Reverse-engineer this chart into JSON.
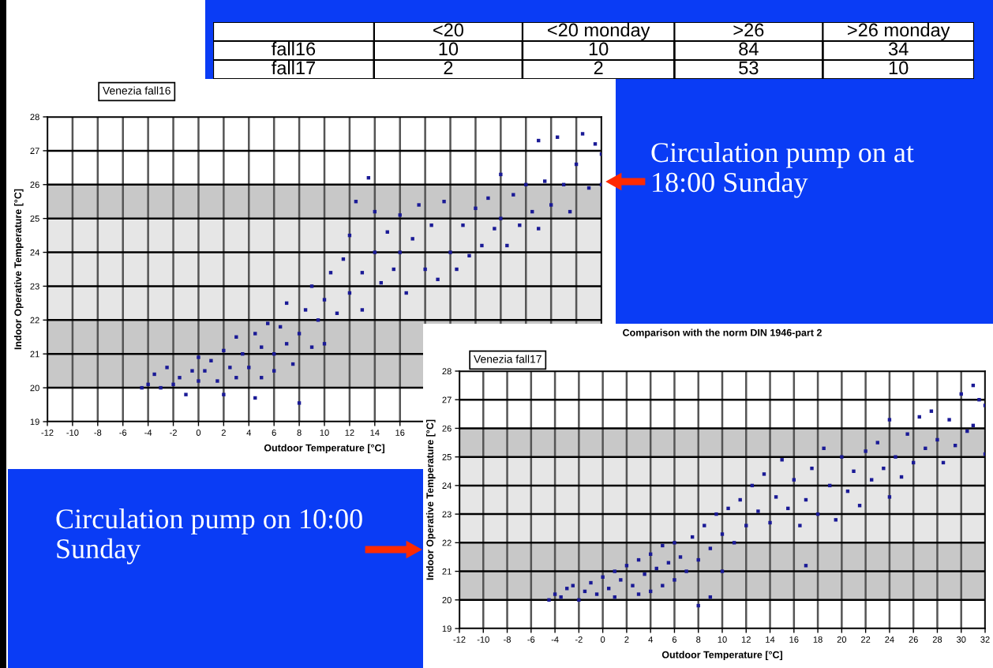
{
  "chart_data": [
    {
      "type": "other",
      "categories": [
        "<20",
        "<20 monday",
        ">26",
        ">26 monday"
      ],
      "data_labels": true,
      "series": [
        {
          "name": "fall16",
          "color": "#ffffff",
          "values": [
            10,
            10,
            84,
            34
          ]
        },
        {
          "name": "fall17",
          "color": "#ffffff",
          "values": [
            2,
            2,
            53,
            10
          ]
        }
      ]
    },
    {
      "type": "scatter",
      "xlabel": "Outdoor Temperature [°C]",
      "ylabel": "Indoor Operative Temperature [°C]",
      "annotations": [
        "Venezia fall16",
        "Circulation pump on at 18:00 Sunday"
      ],
      "xlim": [
        -12,
        32
      ],
      "ylim": [
        19,
        28
      ],
      "xticks": [
        -12,
        -10,
        -8,
        -6,
        -4,
        -2,
        0,
        2,
        4,
        6,
        8,
        10,
        12,
        14,
        16,
        {
          "value": 18,
          "label": null
        },
        {
          "value": 20,
          "label": null
        },
        {
          "value": 22,
          "label": null
        },
        {
          "value": 24,
          "label": null
        },
        {
          "value": 26,
          "label": null
        },
        {
          "value": 28,
          "label": null
        },
        {
          "value": 30,
          "label": null
        },
        {
          "value": 32,
          "label": null
        }
      ],
      "yticks": [
        19,
        20,
        21,
        22,
        23,
        24,
        25,
        26,
        27,
        28
      ],
      "grid": true,
      "marker": "square",
      "bands": [
        {
          "axis": "y",
          "from": 20,
          "to": 22,
          "color": "#c8c8c8"
        },
        {
          "axis": "y",
          "from": 22,
          "to": 25,
          "color": "#e6e6e6"
        },
        {
          "axis": "y",
          "from": 25,
          "to": 26,
          "color": "#c8c8c8"
        }
      ],
      "series": [
        {
          "color": "#1a1a96",
          "x": [
            -4.5,
            -4,
            -3.5,
            -3,
            -2.5,
            -2,
            -1.5,
            -1,
            -0.5,
            0,
            0,
            0.5,
            1,
            1.5,
            2,
            2,
            2.5,
            3,
            3,
            3.5,
            4,
            4.5,
            4.5,
            5,
            5,
            5.5,
            6,
            6,
            6.5,
            7,
            7,
            7.5,
            8,
            8,
            8.5,
            9,
            9,
            9.5,
            10,
            10,
            10.5,
            11,
            11.5,
            12,
            12,
            12.5,
            13,
            13.5,
            13,
            14,
            14,
            14.5,
            15,
            15.5,
            16,
            16,
            16.5,
            17,
            17.5,
            18,
            18.5,
            19,
            19.5,
            20,
            20.5,
            21,
            21.5,
            22,
            22.5,
            23,
            23.5,
            24,
            24,
            24.5,
            25,
            25.5,
            26,
            26.5,
            27,
            27,
            27.5,
            28,
            28.5,
            29,
            29.5,
            30,
            30.5,
            31,
            31.5,
            32,
            32
          ],
          "values": [
            20.0,
            20.1,
            20.4,
            20.0,
            20.6,
            20.1,
            20.3,
            19.8,
            20.5,
            20.2,
            20.9,
            20.5,
            20.8,
            20.2,
            21.1,
            19.8,
            20.6,
            21.5,
            20.3,
            21.0,
            20.6,
            21.6,
            19.7,
            21.2,
            20.3,
            21.9,
            21.0,
            20.5,
            21.8,
            21.3,
            22.5,
            20.7,
            21.6,
            19.55,
            22.3,
            21.2,
            23.0,
            22.0,
            22.6,
            21.3,
            23.4,
            22.2,
            23.8,
            22.8,
            24.5,
            25.5,
            23.4,
            26.2,
            22.3,
            24.0,
            25.2,
            23.1,
            24.6,
            23.5,
            25.1,
            24.0,
            22.8,
            24.4,
            25.4,
            23.5,
            24.8,
            23.2,
            25.5,
            24.0,
            23.5,
            24.8,
            23.9,
            25.3,
            24.2,
            25.6,
            24.7,
            25.0,
            26.3,
            24.2,
            25.7,
            24.8,
            26.0,
            25.2,
            27.3,
            24.7,
            26.1,
            25.4,
            27.4,
            26.0,
            25.2,
            26.6,
            27.5,
            25.9,
            27.2,
            26.0,
            26.9
          ]
        }
      ]
    },
    {
      "type": "scatter",
      "title": "Comparison with the norm DIN 1946-part 2",
      "xlabel": "Outdoor Temperature [°C]",
      "ylabel": "Indoor Operative Temperature [°C]",
      "annotations": [
        "Venezia fall17",
        "Circulation pump on 10:00 Sunday"
      ],
      "xlim": [
        -12,
        32
      ],
      "ylim": [
        19,
        28
      ],
      "xticks": [
        -12,
        -10,
        -8,
        -6,
        -4,
        -2,
        0,
        2,
        4,
        6,
        8,
        10,
        12,
        14,
        16,
        18,
        20,
        22,
        24,
        26,
        28,
        30,
        32
      ],
      "yticks": [
        19,
        20,
        21,
        22,
        23,
        24,
        25,
        26,
        27,
        28
      ],
      "grid": true,
      "marker": "square",
      "bands": [
        {
          "axis": "y",
          "from": 20,
          "to": 22,
          "color": "#c8c8c8"
        },
        {
          "axis": "y",
          "from": 22,
          "to": 25,
          "color": "#e6e6e6"
        },
        {
          "axis": "y",
          "from": 25,
          "to": 26,
          "color": "#c8c8c8"
        }
      ],
      "series": [
        {
          "color": "#1a1a96",
          "x": [
            -4.5,
            -4,
            -3.5,
            -3,
            -2.5,
            -2,
            -1.5,
            -1,
            -0.5,
            0,
            0.5,
            1,
            1,
            1.5,
            2,
            2.5,
            3,
            3,
            3.5,
            4,
            4,
            4.5,
            5,
            5,
            5.5,
            6,
            6,
            6.5,
            7,
            7.5,
            8,
            8,
            8.5,
            9,
            9,
            9.5,
            10,
            10,
            10.5,
            11,
            11.5,
            12,
            12.5,
            13,
            13.5,
            14,
            14.5,
            15,
            15.5,
            16,
            16.5,
            17,
            17,
            17.5,
            18,
            18.5,
            19,
            19.5,
            20,
            20.5,
            21,
            21.5,
            22,
            22.5,
            23,
            23.5,
            24,
            24,
            24.5,
            25,
            25.5,
            26,
            26.5,
            27,
            27.5,
            28,
            28.5,
            29,
            29.5,
            30,
            30.5,
            31,
            31,
            31.5,
            32,
            32
          ],
          "values": [
            20.0,
            20.2,
            20.1,
            20.4,
            20.5,
            20.0,
            20.3,
            20.6,
            20.2,
            20.8,
            20.4,
            21.0,
            20.1,
            20.7,
            21.2,
            20.5,
            21.4,
            20.2,
            20.9,
            21.6,
            20.3,
            21.1,
            21.9,
            20.5,
            21.3,
            22.0,
            20.7,
            21.5,
            21.0,
            22.2,
            21.4,
            19.8,
            22.6,
            21.8,
            20.1,
            23.0,
            22.3,
            21.0,
            23.2,
            22.0,
            23.5,
            22.6,
            24.0,
            23.1,
            24.4,
            22.7,
            23.6,
            24.9,
            23.2,
            24.2,
            22.6,
            23.5,
            21.2,
            24.6,
            23.0,
            25.3,
            24.0,
            22.8,
            25.0,
            23.8,
            24.5,
            23.3,
            25.2,
            24.2,
            25.5,
            24.6,
            23.6,
            26.3,
            25.0,
            24.3,
            25.8,
            24.8,
            26.4,
            25.3,
            26.6,
            25.6,
            24.8,
            26.3,
            25.4,
            27.2,
            25.9,
            27.5,
            26.1,
            27.0,
            25.1,
            26.8
          ]
        }
      ]
    }
  ]
}
